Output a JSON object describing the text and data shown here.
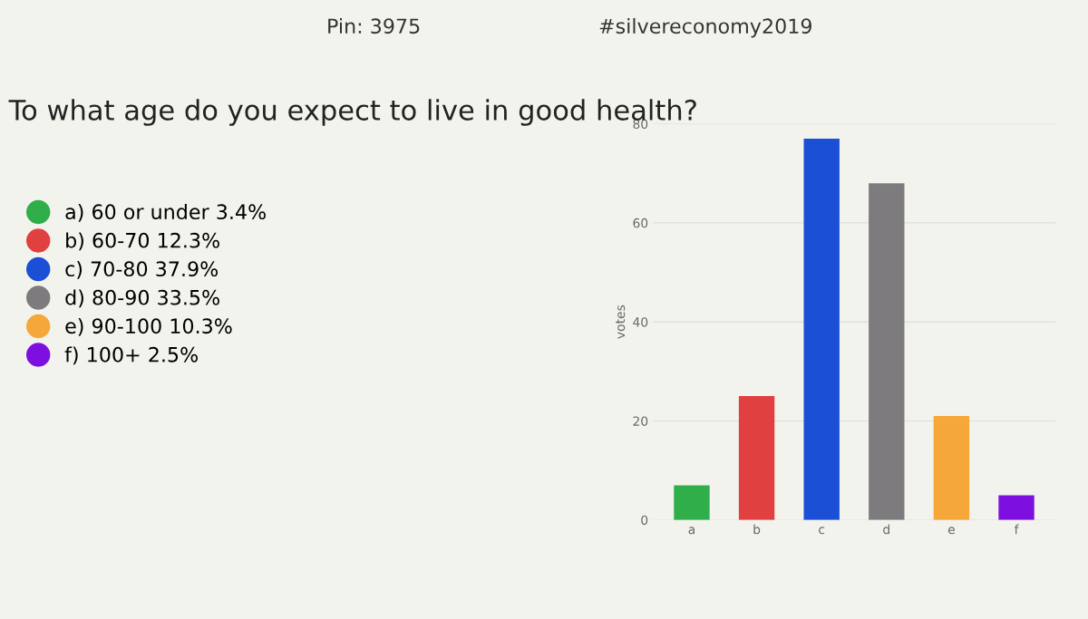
{
  "chart_data": {
    "type": "bar",
    "title": "To what age do you expect to live in good health?",
    "ylabel": "votes",
    "annotations": [
      "Pin: 3975",
      "#silvereconomy2019"
    ],
    "categories": [
      "a",
      "b",
      "c",
      "d",
      "e",
      "f"
    ],
    "stacked": true,
    "series": [
      {
        "name": "a) 60 or under 3.4%",
        "color": "#2fae4a",
        "values": [
          7,
          null,
          null,
          null,
          null,
          null
        ]
      },
      {
        "name": "b) 60-70 12.3%",
        "color": "#e0403f",
        "values": [
          null,
          25,
          null,
          null,
          null,
          null
        ]
      },
      {
        "name": "c) 70-80 37.9%",
        "color": "#1a4fd6",
        "values": [
          null,
          null,
          77,
          null,
          null,
          null
        ]
      },
      {
        "name": "d) 80-90 33.5%",
        "color": "#7d7b7d",
        "values": [
          null,
          null,
          null,
          68,
          null,
          null
        ]
      },
      {
        "name": "e) 90-100 10.3%",
        "color": "#f5a73a",
        "values": [
          null,
          null,
          null,
          null,
          21,
          null
        ]
      },
      {
        "name": "f) 100+ 2.5%",
        "color": "#7d10e0",
        "values": [
          null,
          null,
          null,
          null,
          null,
          5
        ]
      }
    ],
    "ylim": [
      0,
      80
    ],
    "yticks": [
      0,
      20,
      40,
      60,
      80
    ],
    "grid": "y",
    "legend": "left"
  }
}
